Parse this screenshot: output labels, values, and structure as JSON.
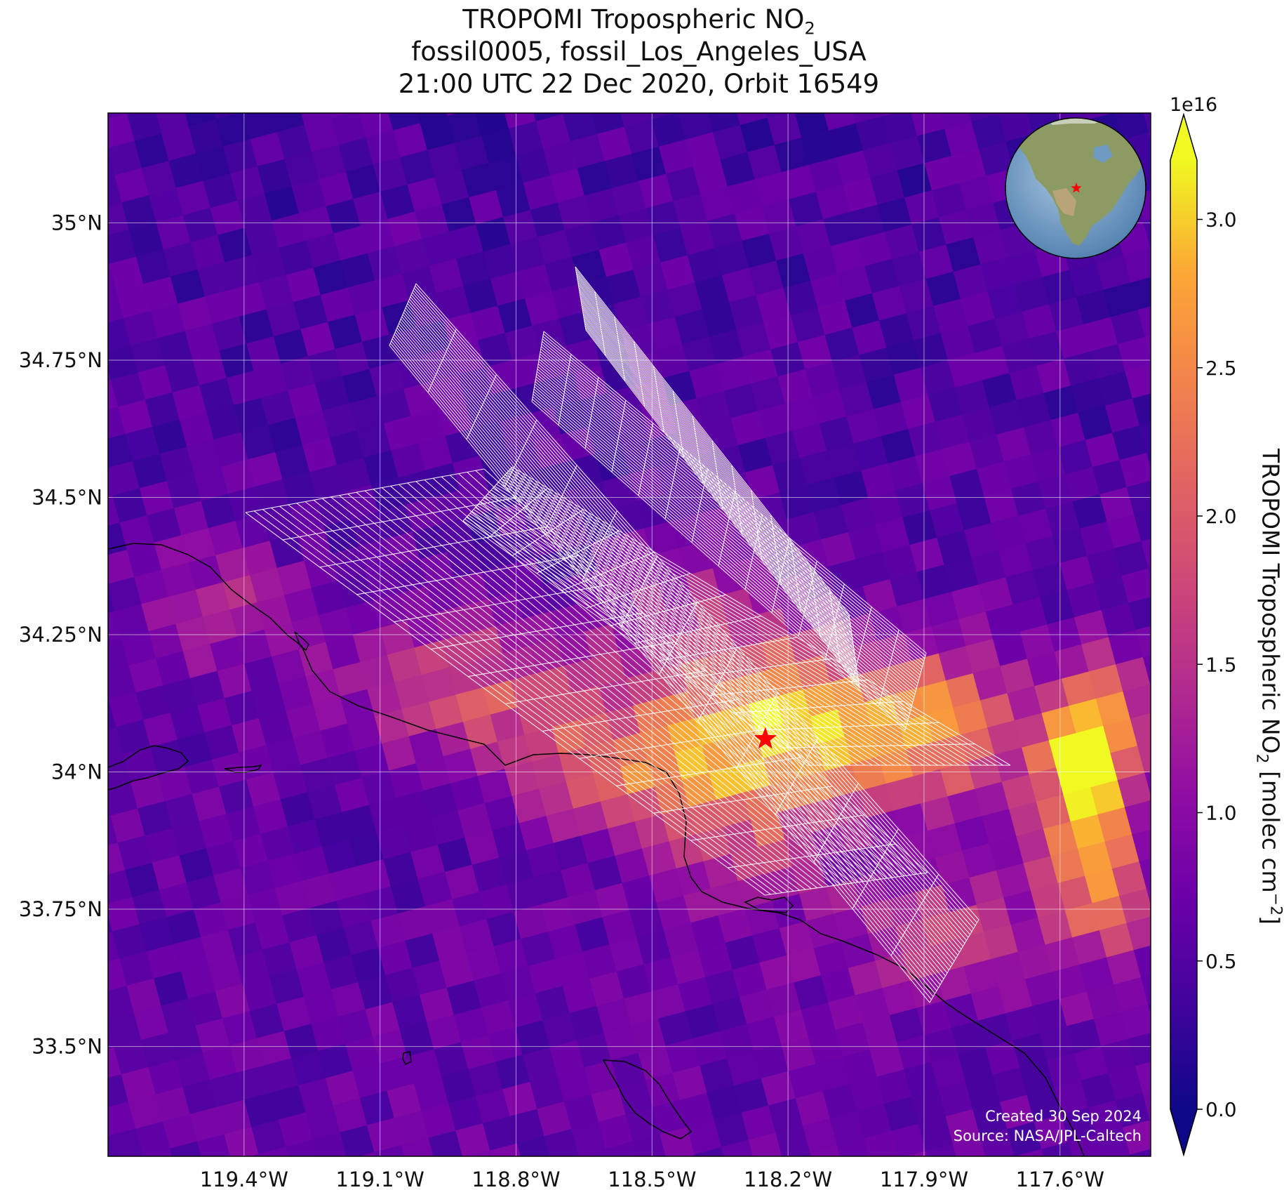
{
  "title": {
    "line1_prefix": "TROPOMI Tropospheric NO",
    "line1_sub": "2",
    "line2": "fossil0005, fossil_Los_Angeles_USA",
    "line3": "21:00 UTC 22 Dec 2020, Orbit 16549"
  },
  "map": {
    "extent": {
      "lon_min": -119.7,
      "lon_max": -117.4,
      "lat_min": 33.3,
      "lat_max": 35.2
    },
    "lon_ticks": [
      {
        "value": -119.4,
        "label": "119.4°W"
      },
      {
        "value": -119.1,
        "label": "119.1°W"
      },
      {
        "value": -118.8,
        "label": "118.8°W"
      },
      {
        "value": -118.5,
        "label": "118.5°W"
      },
      {
        "value": -118.2,
        "label": "118.2°W"
      },
      {
        "value": -117.9,
        "label": "117.9°W"
      },
      {
        "value": -117.6,
        "label": "117.6°W"
      }
    ],
    "lat_ticks": [
      {
        "value": 35.0,
        "label": "35°N"
      },
      {
        "value": 34.75,
        "label": "34.75°N"
      },
      {
        "value": 34.5,
        "label": "34.5°N"
      },
      {
        "value": 34.25,
        "label": "34.25°N"
      },
      {
        "value": 34.0,
        "label": "34°N"
      },
      {
        "value": 33.75,
        "label": "33.75°N"
      },
      {
        "value": 33.5,
        "label": "33.5°N"
      }
    ],
    "target_marker": {
      "lon": -118.25,
      "lat": 34.06,
      "color": "#ff0000",
      "symbol": "star"
    },
    "gridlines": true,
    "overlay_grid_color": "#ffffff",
    "inset_globe": {
      "marker_color": "#ff0000",
      "region": "North America"
    }
  },
  "colorbar": {
    "colormap": "plasma",
    "min": 0.0,
    "max": 3.2,
    "exponent_label": "1e16",
    "ticks": [
      "0.0",
      "0.5",
      "1.0",
      "1.5",
      "2.0",
      "2.5",
      "3.0"
    ],
    "label_prefix": "TROPOMI Tropospheric NO",
    "label_sub": "2",
    "label_mid": " [molec cm",
    "label_sup": "−2",
    "label_suffix": "]",
    "extend": "both"
  },
  "credits": {
    "created": "Created 30 Sep 2024",
    "source": "Source: NASA/JPL-Caltech"
  }
}
